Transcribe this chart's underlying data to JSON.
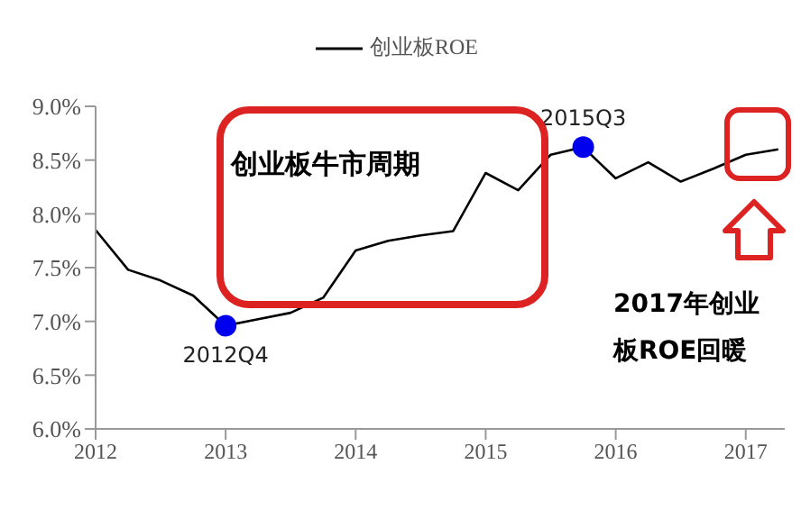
{
  "chart_data": {
    "type": "line",
    "legend": "top",
    "grid": false,
    "x": [
      2012,
      2012.25,
      2012.5,
      2012.75,
      2013,
      2013.25,
      2013.5,
      2013.75,
      2014,
      2014.25,
      2014.5,
      2014.75,
      2015,
      2015.25,
      2015.5,
      2015.75,
      2016,
      2016.25,
      2016.5,
      2016.75,
      2017,
      2017.25
    ],
    "series": [
      {
        "name": "创业板ROE",
        "color": "#000000",
        "marker": "none",
        "values": [
          7.85,
          7.48,
          7.38,
          7.24,
          6.96,
          7.02,
          7.08,
          7.22,
          7.66,
          7.75,
          7.8,
          7.84,
          8.38,
          8.22,
          8.55,
          8.62,
          8.33,
          8.48,
          8.3,
          8.42,
          8.55,
          8.6
        ]
      },
      {
        "type": "scatter",
        "marker": "circle",
        "color": "#0000ee",
        "x": [
          2013,
          2015.75
        ],
        "values": [
          6.96,
          8.62
        ]
      }
    ],
    "xlim": [
      2012,
      2017.3
    ],
    "xticks": [
      2012,
      2013,
      2014,
      2015,
      2016,
      2017
    ],
    "ylim": [
      6,
      9
    ],
    "yticks": [
      {
        "value": 6,
        "label": "6.0%"
      },
      {
        "value": 6.5,
        "label": "6.5%"
      },
      {
        "value": 7,
        "label": "7.0%"
      },
      {
        "value": 7.5,
        "label": "7.5%"
      },
      {
        "value": 8,
        "label": "8.0%"
      },
      {
        "value": 8.5,
        "label": "8.5%"
      },
      {
        "value": 9,
        "label": "9.0%"
      }
    ],
    "annotations": [
      {
        "text": "2012Q4",
        "x": 2013,
        "y": 6.96
      },
      {
        "text": "2015Q3",
        "x": 2015.75,
        "y": 8.62
      },
      "创业板牛市周期",
      "2017年创业板ROE回暖"
    ]
  }
}
